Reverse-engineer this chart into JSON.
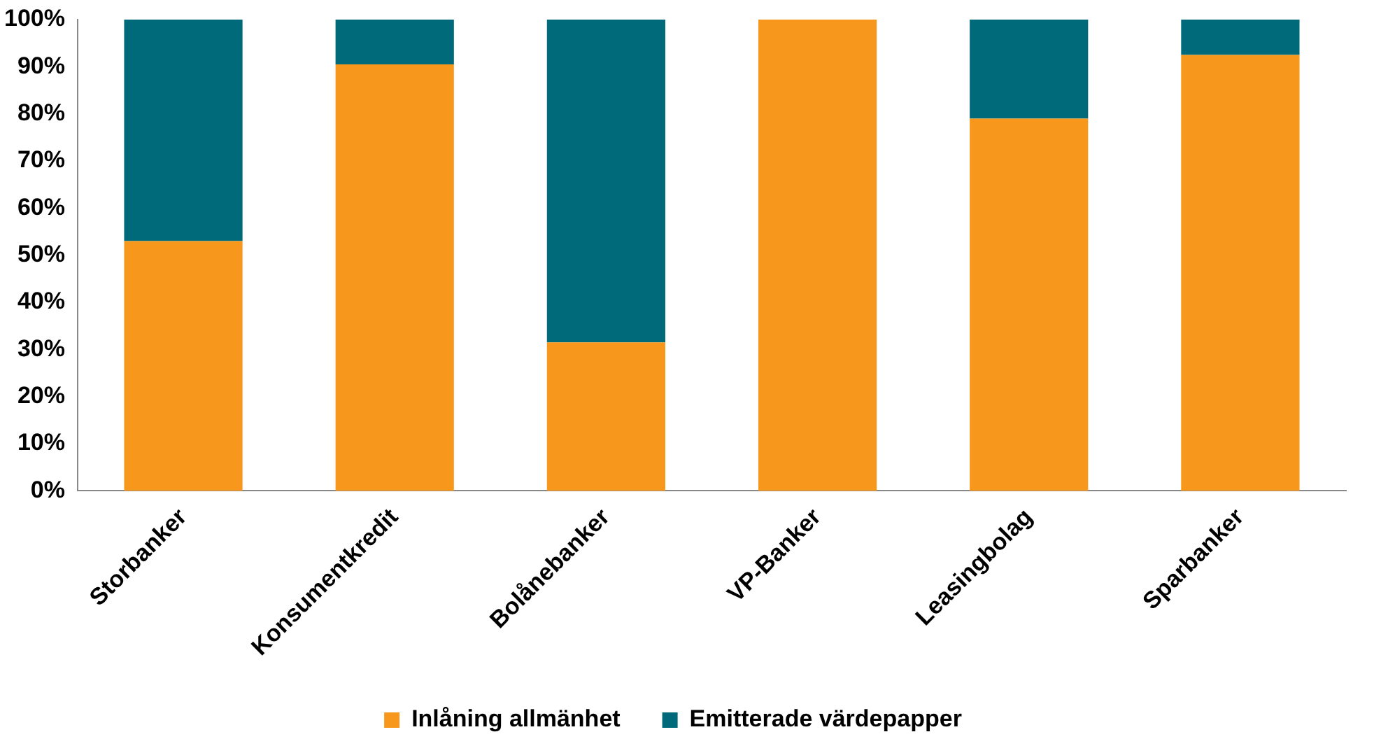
{
  "chart_data": {
    "type": "bar",
    "stacked": true,
    "categories": [
      "Storbanker",
      "Konsumentkredit",
      "Bolånebanker",
      "VP-Banker",
      "Leasingbolag",
      "Sparbanker"
    ],
    "series": [
      {
        "name": "Inlåning allmänhet",
        "color": "#f7981d",
        "values": [
          53,
          90.5,
          31.5,
          100,
          79,
          92.5
        ]
      },
      {
        "name": "Emitterade värdepapper",
        "color": "#006a7a",
        "values": [
          47,
          9.5,
          68.5,
          0,
          21,
          7.5
        ]
      }
    ],
    "ylim": [
      0,
      100
    ],
    "yticks": [
      {
        "value": 0,
        "label": "0%"
      },
      {
        "value": 10,
        "label": "10%"
      },
      {
        "value": 20,
        "label": "20%"
      },
      {
        "value": 30,
        "label": "30%"
      },
      {
        "value": 40,
        "label": "40%"
      },
      {
        "value": 50,
        "label": "50%"
      },
      {
        "value": 60,
        "label": "60%"
      },
      {
        "value": 70,
        "label": "70%"
      },
      {
        "value": 80,
        "label": "80%"
      },
      {
        "value": 90,
        "label": "90%"
      },
      {
        "value": 100,
        "label": "100%"
      }
    ],
    "grid": false,
    "legend": "bottom"
  }
}
